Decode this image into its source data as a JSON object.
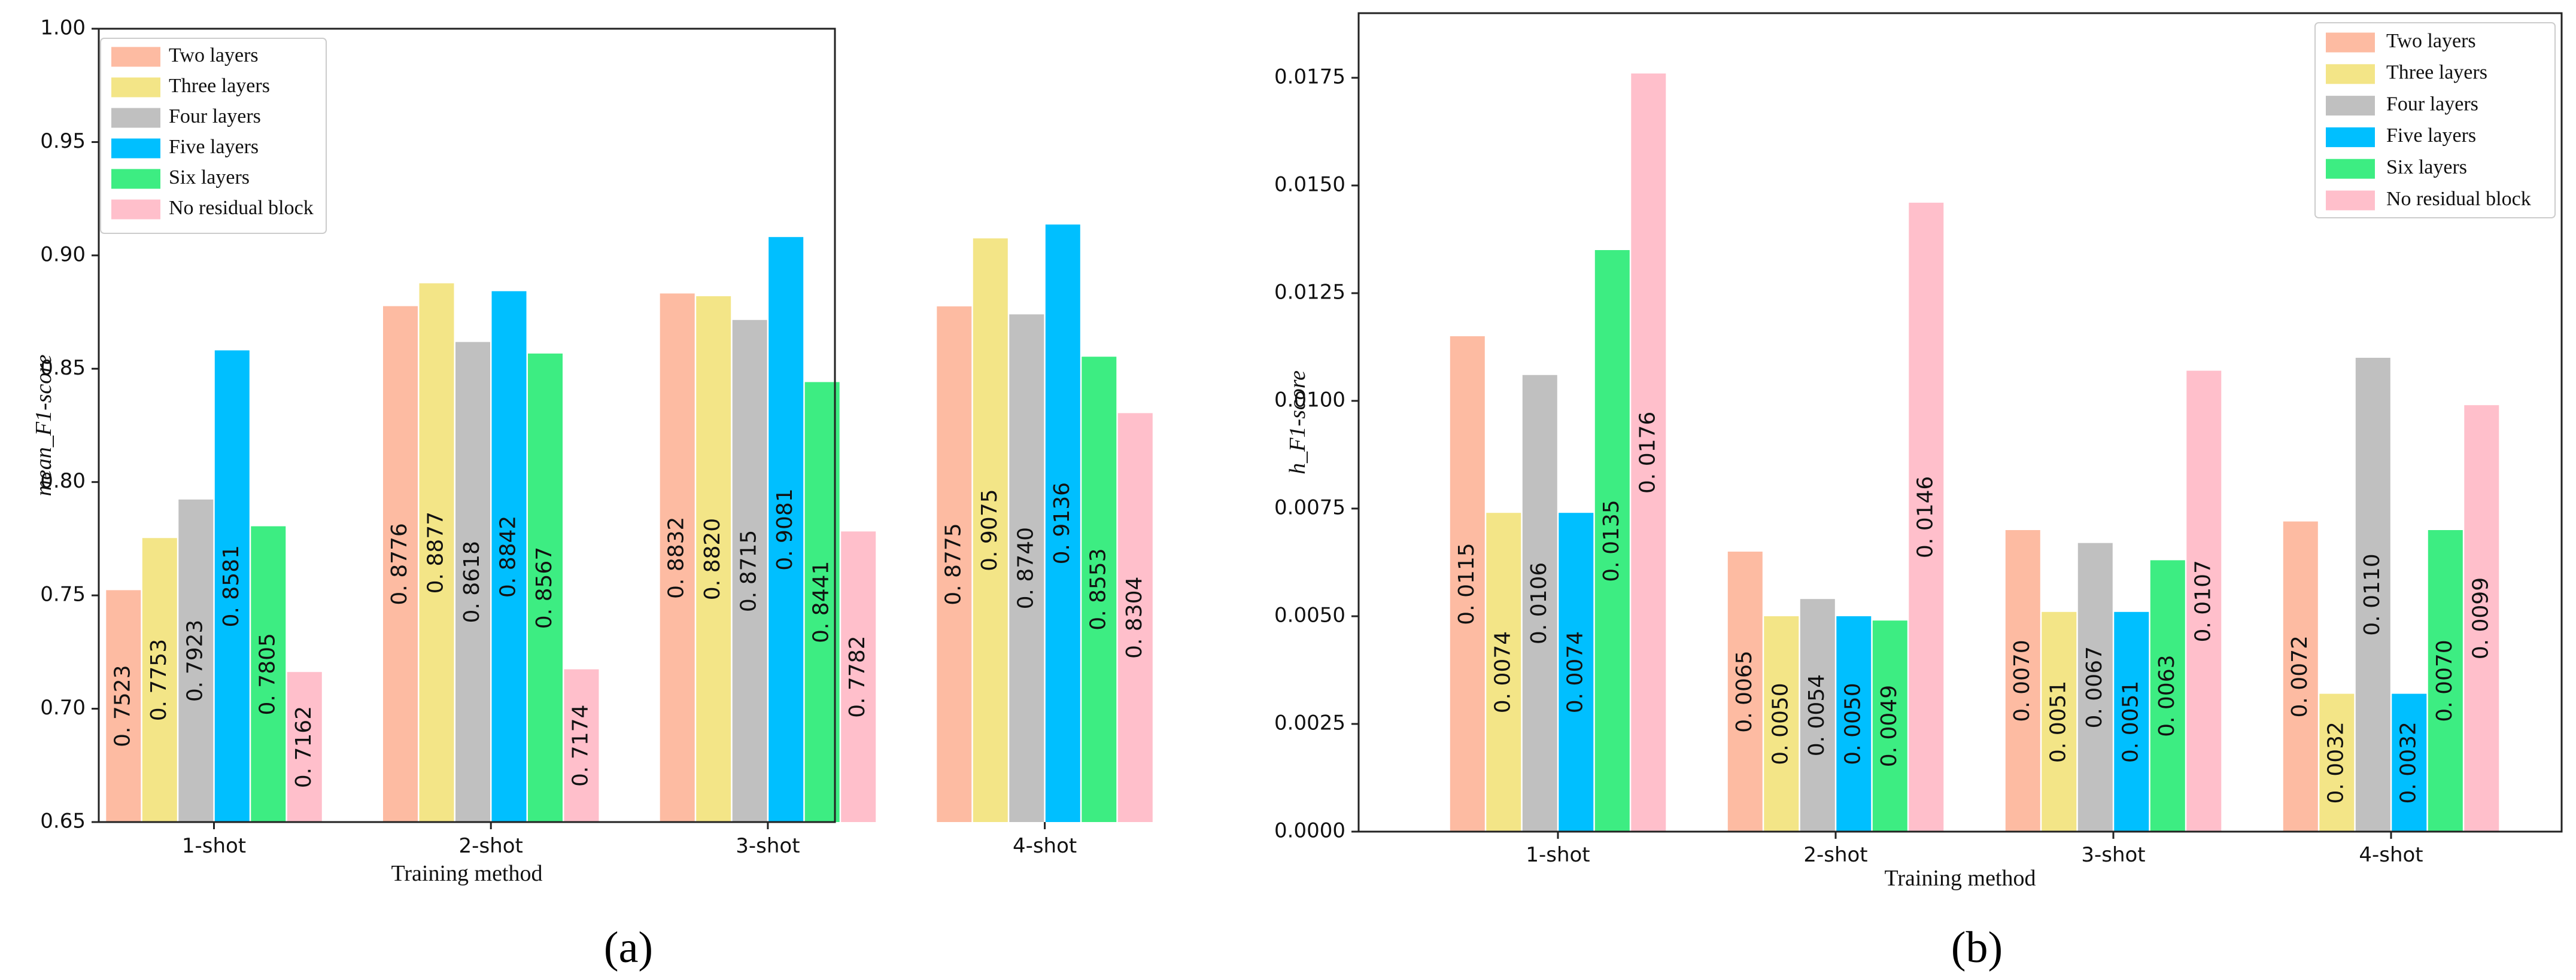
{
  "figure": {
    "panel_labels": [
      "(a)",
      "(b)"
    ]
  },
  "legend_labels": [
    "Two layers",
    "Three layers",
    "Four layers",
    "Five layers",
    "Six layers",
    "No residual block"
  ],
  "series_colors": [
    "#fdbba2",
    "#f3e587",
    "#c0c0c0",
    "#00bfff",
    "#3ded82",
    "#ffbfcb"
  ],
  "chart_data": [
    {
      "type": "bar",
      "title": "",
      "panel": "(a)",
      "xlabel": "Training method",
      "ylabel": "mean_F1-score",
      "categories": [
        "1-shot",
        "2-shot",
        "3-shot",
        "4-shot"
      ],
      "ylim": [
        0.65,
        1.0
      ],
      "yticks": [
        0.65,
        0.7,
        0.75,
        0.8,
        0.85,
        0.9,
        0.95,
        1.0
      ],
      "ytick_labels": [
        "0.65",
        "0.70",
        "0.75",
        "0.80",
        "0.85",
        "0.90",
        "0.95",
        "1.00"
      ],
      "legend_position": "top-left",
      "grid": false,
      "series": [
        {
          "name": "Two layers",
          "values": [
            0.7523,
            0.8776,
            0.8832,
            0.8775
          ],
          "labels": [
            "0. 7523",
            "0. 8776",
            "0. 8832",
            "0. 8775"
          ]
        },
        {
          "name": "Three layers",
          "values": [
            0.7753,
            0.8877,
            0.882,
            0.9075
          ],
          "labels": [
            "0. 7753",
            "0. 8877",
            "0. 8820",
            "0. 9075"
          ]
        },
        {
          "name": "Four layers",
          "values": [
            0.7923,
            0.8618,
            0.8715,
            0.874
          ],
          "labels": [
            "0. 7923",
            "0. 8618",
            "0. 8715",
            "0. 8740"
          ]
        },
        {
          "name": "Five layers",
          "values": [
            0.8581,
            0.8842,
            0.9081,
            0.9136
          ],
          "labels": [
            "0. 8581",
            "0. 8842",
            "0. 9081",
            "0. 9136"
          ]
        },
        {
          "name": "Six layers",
          "values": [
            0.7805,
            0.8567,
            0.8441,
            0.8553
          ],
          "labels": [
            "0. 7805",
            "0. 8567",
            "0. 8441",
            "0. 8553"
          ]
        },
        {
          "name": "No residual block",
          "values": [
            0.7162,
            0.7174,
            0.7782,
            0.8304
          ],
          "labels": [
            "0. 7162",
            "0. 7174",
            "0. 7782",
            "0. 8304"
          ]
        }
      ]
    },
    {
      "type": "bar",
      "title": "",
      "panel": "(b)",
      "xlabel": "Training method",
      "ylabel": "h_F1-score",
      "categories": [
        "1-shot",
        "2-shot",
        "3-shot",
        "4-shot"
      ],
      "ylim": [
        0.0,
        0.019
      ],
      "yticks": [
        0.0,
        0.0025,
        0.005,
        0.0075,
        0.01,
        0.0125,
        0.015,
        0.0175
      ],
      "ytick_labels": [
        "0.0000",
        "0.0025",
        "0.0050",
        "0.0075",
        "0.0100",
        "0.0125",
        "0.0150",
        "0.0175"
      ],
      "legend_position": "top-right",
      "grid": false,
      "series": [
        {
          "name": "Two layers",
          "values": [
            0.0115,
            0.0065,
            0.007,
            0.0072
          ],
          "labels": [
            "0. 0115",
            "0. 0065",
            "0. 0070",
            "0. 0072"
          ]
        },
        {
          "name": "Three layers",
          "values": [
            0.0074,
            0.005,
            0.0051,
            0.0032
          ],
          "labels": [
            "0. 0074",
            "0. 0050",
            "0. 0051",
            "0. 0032"
          ]
        },
        {
          "name": "Four layers",
          "values": [
            0.0106,
            0.0054,
            0.0067,
            0.011
          ],
          "labels": [
            "0. 0106",
            "0. 0054",
            "0. 0067",
            "0. 0110"
          ]
        },
        {
          "name": "Five layers",
          "values": [
            0.0074,
            0.005,
            0.0051,
            0.0032
          ],
          "labels": [
            "0. 0074",
            "0. 0050",
            "0. 0051",
            "0. 0032"
          ]
        },
        {
          "name": "Six layers",
          "values": [
            0.0135,
            0.0049,
            0.0063,
            0.007
          ],
          "labels": [
            "0. 0135",
            "0. 0049",
            "0. 0063",
            "0. 0070"
          ]
        },
        {
          "name": "No residual block",
          "values": [
            0.0176,
            0.0146,
            0.0107,
            0.0099
          ],
          "labels": [
            "0. 0176",
            "0. 0146",
            "0. 0107",
            "0. 0099"
          ]
        }
      ]
    }
  ]
}
